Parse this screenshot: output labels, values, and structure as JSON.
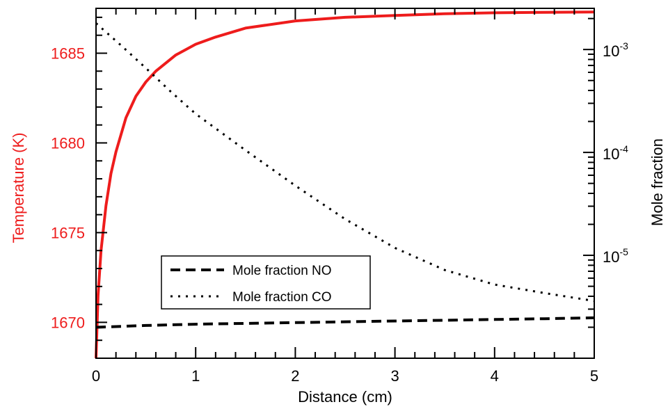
{
  "chart_data": {
    "type": "line",
    "xlabel": "Distance (cm)",
    "ylabel_left": "Temperature (K)",
    "ylabel_right": "Mole fraction",
    "xlim": [
      0,
      5
    ],
    "ylim_left": [
      1668,
      1687.5
    ],
    "ylim_right_log10": [
      -6.0,
      -2.6
    ],
    "y_right_scale": "log",
    "x_ticks": [
      "0",
      "1",
      "2",
      "3",
      "4",
      "5"
    ],
    "y_left_ticks": [
      "1670",
      "1675",
      "1680",
      "1685"
    ],
    "y_right_ticks": [
      {
        "base": "10",
        "exp": "-3",
        "value": 0.001
      },
      {
        "base": "10",
        "exp": "-4",
        "value": 0.0001
      },
      {
        "base": "10",
        "exp": "-5",
        "value": 1e-05
      }
    ],
    "colors": {
      "temperature": "#ee1c1c",
      "axis": "#000000",
      "left_axis_text": "#ee1c1c"
    },
    "series": [
      {
        "axis": "left",
        "color": "#ee1c1c",
        "style": "solid",
        "x": [
          0,
          0.02,
          0.05,
          0.1,
          0.15,
          0.2,
          0.3,
          0.4,
          0.5,
          0.6,
          0.8,
          1.0,
          1.2,
          1.5,
          2.0,
          2.5,
          3.0,
          3.5,
          4.0,
          4.5,
          5.0
        ],
        "values": [
          1668,
          1671.5,
          1674,
          1676.5,
          1678.3,
          1679.5,
          1681.4,
          1682.6,
          1683.4,
          1684.0,
          1684.9,
          1685.5,
          1685.9,
          1686.4,
          1686.8,
          1687.0,
          1687.1,
          1687.2,
          1687.25,
          1687.28,
          1687.3
        ]
      },
      {
        "name": "Mole fraction NO",
        "axis": "right",
        "color": "#000000",
        "style": "dashed",
        "x": [
          0,
          0.5,
          1.0,
          1.5,
          2.0,
          2.5,
          3.0,
          3.5,
          4.0,
          4.5,
          5.0
        ],
        "values": [
          2e-06,
          2.08e-06,
          2.14e-06,
          2.18e-06,
          2.22e-06,
          2.26e-06,
          2.3e-06,
          2.34e-06,
          2.38e-06,
          2.42e-06,
          2.47e-06
        ]
      },
      {
        "name": "Mole fraction CO",
        "axis": "right",
        "color": "#000000",
        "style": "dotted",
        "x": [
          0,
          0.25,
          0.5,
          0.75,
          1.0,
          1.5,
          2.0,
          2.5,
          3.0,
          3.5,
          4.0,
          4.5,
          5.0
        ],
        "values": [
          0.0018,
          0.0011,
          0.00066,
          0.00039,
          0.000237,
          0.000105,
          4.75e-05,
          2.25e-05,
          1.18e-05,
          7.2e-06,
          5.2e-06,
          4.3e-06,
          3.6e-06
        ]
      }
    ],
    "legend": {
      "position": "lower-left",
      "entries": [
        {
          "label": "Mole fraction NO",
          "style": "dashed"
        },
        {
          "label": "Mole fraction CO",
          "style": "dotted"
        }
      ]
    }
  }
}
